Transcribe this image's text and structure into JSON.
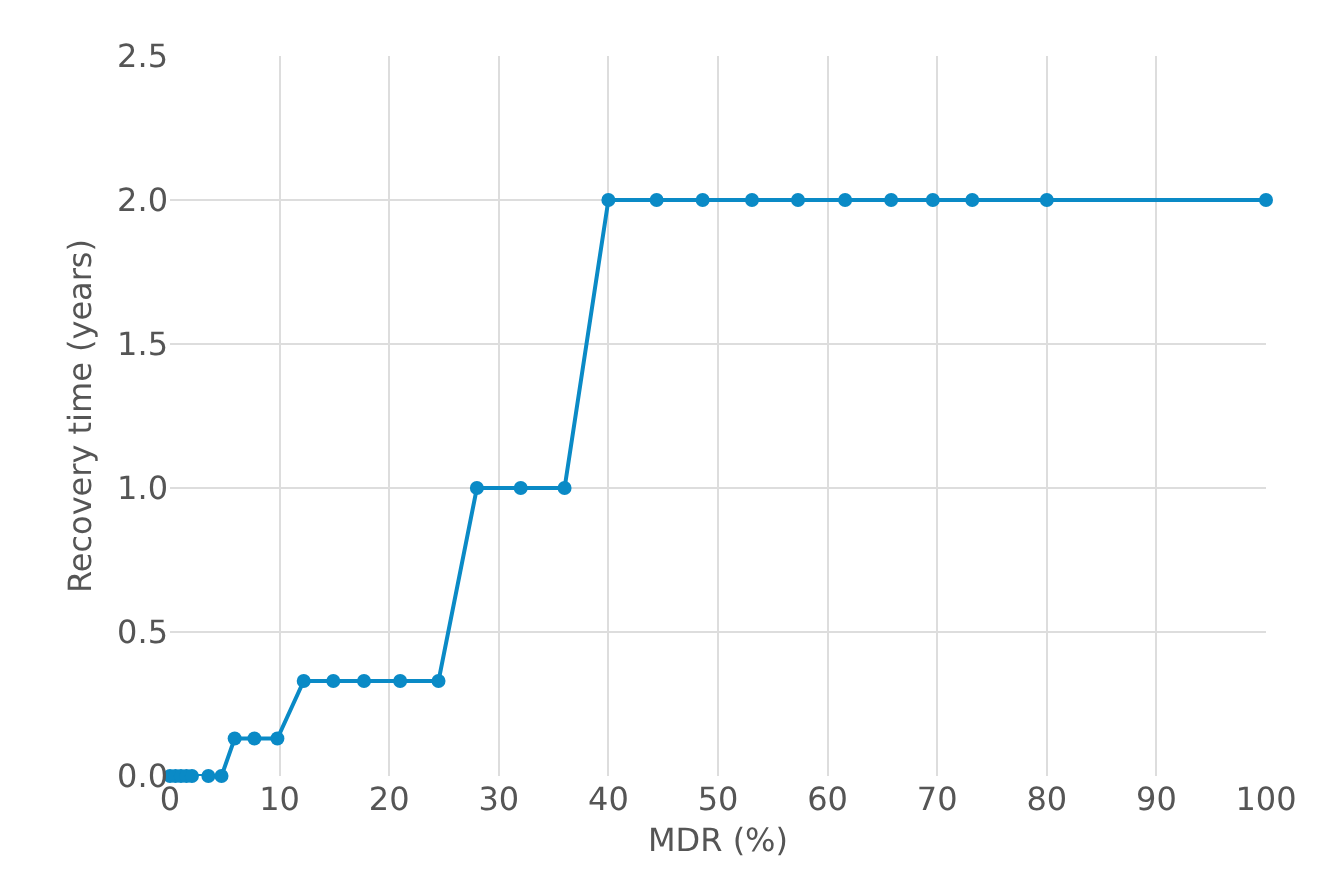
{
  "chart_data": {
    "type": "line",
    "xlabel": "MDR (%)",
    "ylabel": "Recovery time (years)",
    "x": [
      0,
      0.5,
      1,
      1.5,
      2,
      3.5,
      4.7,
      5.9,
      7.7,
      9.8,
      12.2,
      14.9,
      17.7,
      21,
      24.5,
      28,
      32,
      36,
      40,
      44.4,
      48.6,
      53.1,
      57.3,
      61.6,
      65.8,
      69.6,
      73.2,
      80,
      100
    ],
    "series": [
      {
        "color": "#0a8ac6",
        "values": [
          0,
          0,
          0,
          0,
          0,
          0,
          0,
          0.13,
          0.13,
          0.13,
          0.33,
          0.33,
          0.33,
          0.33,
          0.33,
          1,
          1,
          1,
          2,
          2,
          2,
          2,
          2,
          2,
          2,
          2,
          2,
          2,
          2
        ]
      }
    ],
    "xlim": [
      0,
      100
    ],
    "ylim": [
      0,
      2.5
    ],
    "xticks": [
      0,
      10,
      20,
      30,
      40,
      50,
      60,
      70,
      80,
      90,
      100
    ],
    "yticks": [
      {
        "value": 0,
        "label": "0.0"
      },
      {
        "value": 0.5,
        "label": "0.5"
      },
      {
        "value": 1,
        "label": "1.0"
      },
      {
        "value": 1.5,
        "label": "1.5"
      },
      {
        "value": 2,
        "label": "2.0"
      },
      {
        "value": 2.5,
        "label": "2.5"
      }
    ],
    "grid": true,
    "marker": "circle",
    "line_style": "solid",
    "legend": false
  }
}
